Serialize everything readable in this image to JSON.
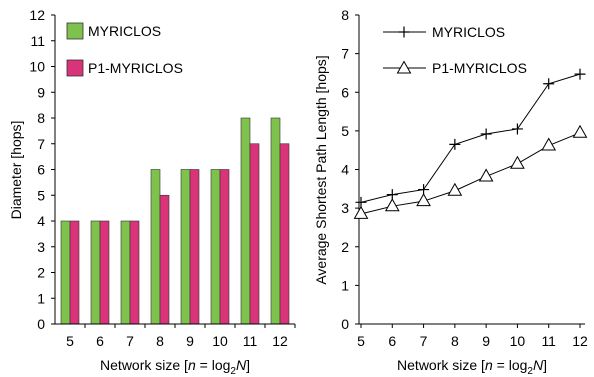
{
  "chart_data": [
    {
      "type": "bar",
      "categories": [
        "5",
        "6",
        "7",
        "8",
        "9",
        "10",
        "11",
        "12"
      ],
      "series": [
        {
          "name": "MYRICLOS",
          "values": [
            4,
            4,
            4,
            6,
            6,
            6,
            8,
            8
          ],
          "color": "#7fc14d"
        },
        {
          "name": "P1-MYRICLOS",
          "values": [
            4,
            4,
            4,
            5,
            6,
            6,
            7,
            7
          ],
          "color": "#d9347a"
        }
      ],
      "ylabel": "Diameter [hops]",
      "xlabel": {
        "pre": "Network size [",
        "n": "n",
        "mid": " = log",
        "sub": "2",
        "N": "N",
        "post": "]"
      },
      "ylim": [
        0,
        12
      ],
      "yticks": [
        "0",
        "1",
        "2",
        "3",
        "4",
        "5",
        "6",
        "7",
        "8",
        "9",
        "10",
        "11",
        "12"
      ],
      "grid": false,
      "legend_position": "top-left"
    },
    {
      "type": "line",
      "x": [
        5,
        6,
        7,
        8,
        9,
        10,
        11,
        12
      ],
      "x_tick_labels": [
        "5",
        "6",
        "7",
        "8",
        "9",
        "10",
        "11",
        "12"
      ],
      "series": [
        {
          "name": "MYRICLOS",
          "marker": "plus",
          "values": [
            3.15,
            3.35,
            3.48,
            4.65,
            4.92,
            5.05,
            6.22,
            6.47
          ]
        },
        {
          "name": "P1-MYRICLOS",
          "marker": "triangle",
          "values": [
            2.85,
            3.05,
            3.18,
            3.45,
            3.82,
            4.15,
            4.62,
            4.95
          ]
        }
      ],
      "ylabel": "Average Shortest Path Length [hops]",
      "xlabel": {
        "pre": "Network size [",
        "n": "n",
        "mid": " = log",
        "sub": "2",
        "N": "N",
        "post": "]"
      },
      "ylim": [
        0,
        8
      ],
      "xlim": [
        5,
        12
      ],
      "yticks": [
        "0",
        "1",
        "2",
        "3",
        "4",
        "5",
        "6",
        "7",
        "8"
      ],
      "grid": false,
      "legend_position": "top-left"
    }
  ]
}
